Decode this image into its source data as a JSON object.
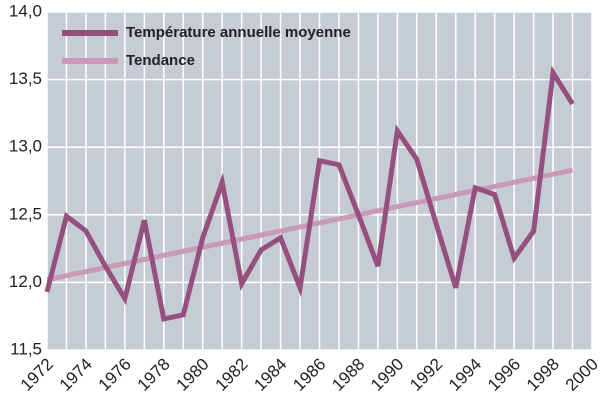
{
  "chart_data": {
    "type": "line",
    "x": [
      1972,
      1973,
      1974,
      1975,
      1976,
      1977,
      1978,
      1979,
      1980,
      1981,
      1982,
      1983,
      1984,
      1985,
      1986,
      1987,
      1988,
      1989,
      1990,
      1991,
      1992,
      1993,
      1994,
      1995,
      1996,
      1997,
      1998,
      1999
    ],
    "series": [
      {
        "name": "Température annuelle moyenne",
        "color": "#96507f",
        "values": [
          11.93,
          12.49,
          12.38,
          12.12,
          11.88,
          12.46,
          11.73,
          11.76,
          12.33,
          12.74,
          11.99,
          12.24,
          12.33,
          11.96,
          12.9,
          12.87,
          12.5,
          12.12,
          13.12,
          12.91,
          12.43,
          11.96,
          12.7,
          12.65,
          12.18,
          12.38,
          13.55,
          13.32
        ]
      },
      {
        "name": "Tendance",
        "color": "#c99ab8",
        "x": [
          1972,
          1999
        ],
        "values": [
          12.02,
          12.83
        ]
      }
    ],
    "xlim": [
      1972,
      2000
    ],
    "xticks": [
      1972,
      1974,
      1976,
      1978,
      1980,
      1982,
      1984,
      1986,
      1988,
      1990,
      1992,
      1994,
      1996,
      1998,
      2000
    ],
    "xminorticks": [
      1973,
      1975,
      1977,
      1979,
      1981,
      1983,
      1985,
      1987,
      1989,
      1991,
      1993,
      1995,
      1997,
      1999
    ],
    "ylim": [
      11.5,
      14.0
    ],
    "yticks": [
      {
        "value": 11.5,
        "label": "11,5"
      },
      {
        "value": 12.0,
        "label": "12,0"
      },
      {
        "value": 12.5,
        "label": "12,5"
      },
      {
        "value": 13.0,
        "label": "13,0"
      },
      {
        "value": 13.5,
        "label": "13,5"
      },
      {
        "value": 14.0,
        "label": "14,0"
      }
    ],
    "grid": true,
    "legend": "upper left",
    "background": "#c5ccd4"
  }
}
